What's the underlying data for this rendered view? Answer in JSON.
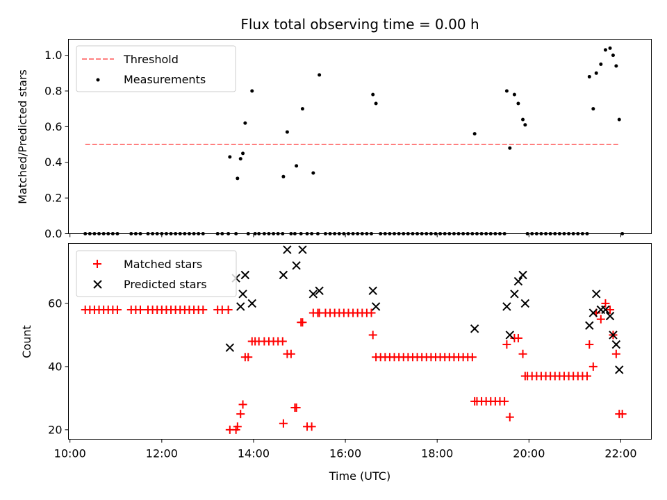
{
  "chart_data": [
    {
      "type": "scatter",
      "title": "Flux total observing time = 0.00 h",
      "xlabel": "",
      "ylabel": "Matched/Predicted stars",
      "xlim": [
        "09:58",
        "22:40"
      ],
      "ylim": [
        0,
        1.09
      ],
      "yticks": [
        "0.0",
        "0.2",
        "0.4",
        "0.6",
        "0.8",
        "1.0"
      ],
      "ytick_values": [
        0,
        0.2,
        0.4,
        0.6,
        0.8,
        1.0
      ],
      "grid": false,
      "legend_position": "upper-left",
      "legend": [
        "Threshold",
        "Measurements"
      ],
      "threshold": {
        "name": "Threshold",
        "x": [
          "10:20",
          "21:58"
        ],
        "y": 0.5,
        "color": "#ff7f7f",
        "style": "dashed"
      },
      "measurements": {
        "name": "Measurements",
        "color": "#000000",
        "x": [
          "10:20",
          "10:26",
          "10:32",
          "10:38",
          "10:44",
          "10:50",
          "10:56",
          "11:02",
          "11:20",
          "11:26",
          "11:32",
          "11:42",
          "11:48",
          "11:54",
          "12:00",
          "12:06",
          "12:12",
          "12:18",
          "12:24",
          "12:30",
          "12:36",
          "12:42",
          "12:48",
          "12:54",
          "13:13",
          "13:19",
          "13:27",
          "13:29",
          "13:37",
          "13:39",
          "13:43",
          "13:46",
          "13:49",
          "13:53",
          "13:58",
          "14:02",
          "14:07",
          "14:14",
          "14:20",
          "14:26",
          "14:32",
          "14:38",
          "14:39",
          "14:44",
          "14:49",
          "14:54",
          "14:56",
          "15:02",
          "15:04",
          "15:10",
          "15:16",
          "15:18",
          "15:24",
          "15:26",
          "15:34",
          "15:40",
          "15:46",
          "15:52",
          "15:58",
          "16:04",
          "16:10",
          "16:16",
          "16:22",
          "16:28",
          "16:34",
          "16:36",
          "16:40",
          "16:46",
          "16:52",
          "16:58",
          "17:04",
          "17:10",
          "17:16",
          "17:22",
          "17:28",
          "17:34",
          "17:40",
          "17:46",
          "17:52",
          "17:58",
          "18:04",
          "18:10",
          "18:16",
          "18:22",
          "18:28",
          "18:34",
          "18:40",
          "18:46",
          "18:49",
          "18:52",
          "18:58",
          "19:04",
          "19:10",
          "19:16",
          "19:22",
          "19:28",
          "19:31",
          "19:35",
          "19:41",
          "19:46",
          "19:52",
          "19:55",
          "19:58",
          "20:04",
          "20:10",
          "20:16",
          "20:22",
          "20:28",
          "20:34",
          "20:40",
          "20:46",
          "20:52",
          "20:58",
          "21:04",
          "21:10",
          "21:16",
          "21:19",
          "21:24",
          "21:28",
          "21:34",
          "21:40",
          "21:46",
          "21:50",
          "21:54",
          "21:58",
          "22:02"
        ],
        "y": [
          0,
          0,
          0,
          0,
          0,
          0,
          0,
          0,
          0,
          0,
          0,
          0,
          0,
          0,
          0,
          0,
          0,
          0,
          0,
          0,
          0,
          0,
          0,
          0,
          0,
          0,
          0,
          0.43,
          0,
          0.31,
          0.42,
          0.45,
          0.62,
          0,
          0.8,
          0,
          0,
          0,
          0,
          0,
          0,
          0,
          0.32,
          0.57,
          0,
          0,
          0.38,
          0,
          0.7,
          0,
          0,
          0.34,
          0,
          0.89,
          0,
          0,
          0,
          0,
          0,
          0,
          0,
          0,
          0,
          0,
          0,
          0.78,
          0.73,
          0,
          0,
          0,
          0,
          0,
          0,
          0,
          0,
          0,
          0,
          0,
          0,
          0,
          0,
          0,
          0,
          0,
          0,
          0,
          0,
          0,
          0.56,
          0,
          0,
          0,
          0,
          0,
          0,
          0,
          0.8,
          0.48,
          0.78,
          0.73,
          0.64,
          0.61,
          0,
          0,
          0,
          0,
          0,
          0,
          0,
          0,
          0,
          0,
          0,
          0,
          0,
          0,
          0.88,
          0.7,
          0.9,
          0.95,
          1.03,
          1.04,
          1.0,
          0.94,
          0.64,
          0
        ]
      }
    },
    {
      "type": "scatter",
      "title": "",
      "xlabel": "Time (UTC)",
      "ylabel": "Count",
      "xlim": [
        "09:58",
        "22:40"
      ],
      "ylim": [
        17,
        79
      ],
      "yticks": [
        "20",
        "40",
        "60"
      ],
      "ytick_values": [
        20,
        40,
        60
      ],
      "xticks": [
        "10:00",
        "12:00",
        "14:00",
        "16:00",
        "18:00",
        "20:00",
        "22:00"
      ],
      "grid": false,
      "legend_position": "upper-left",
      "legend": [
        "Matched stars",
        "Predicted stars"
      ],
      "series": [
        {
          "name": "Matched stars",
          "marker": "plus",
          "color": "#ff0000",
          "x": [
            "10:20",
            "10:26",
            "10:32",
            "10:38",
            "10:44",
            "10:50",
            "10:56",
            "11:02",
            "11:20",
            "11:26",
            "11:32",
            "11:42",
            "11:48",
            "11:54",
            "12:00",
            "12:06",
            "12:12",
            "12:18",
            "12:24",
            "12:30",
            "12:36",
            "12:42",
            "12:48",
            "12:54",
            "13:13",
            "13:19",
            "13:27",
            "13:29",
            "13:37",
            "13:39",
            "13:43",
            "13:46",
            "13:49",
            "13:53",
            "13:58",
            "14:02",
            "14:07",
            "14:14",
            "14:20",
            "14:26",
            "14:32",
            "14:38",
            "14:39",
            "14:44",
            "14:49",
            "14:54",
            "14:56",
            "15:02",
            "15:04",
            "15:10",
            "15:16",
            "15:18",
            "15:24",
            "15:26",
            "15:34",
            "15:40",
            "15:46",
            "15:52",
            "15:58",
            "16:04",
            "16:10",
            "16:16",
            "16:22",
            "16:28",
            "16:34",
            "16:36",
            "16:40",
            "16:46",
            "16:52",
            "16:58",
            "17:04",
            "17:10",
            "17:16",
            "17:22",
            "17:28",
            "17:34",
            "17:40",
            "17:46",
            "17:52",
            "17:58",
            "18:04",
            "18:10",
            "18:16",
            "18:22",
            "18:28",
            "18:34",
            "18:40",
            "18:46",
            "18:49",
            "18:52",
            "18:58",
            "19:04",
            "19:10",
            "19:16",
            "19:22",
            "19:28",
            "19:31",
            "19:35",
            "19:41",
            "19:46",
            "19:52",
            "19:55",
            "19:58",
            "20:04",
            "20:10",
            "20:16",
            "20:22",
            "20:28",
            "20:34",
            "20:40",
            "20:46",
            "20:52",
            "20:58",
            "21:04",
            "21:10",
            "21:16",
            "21:19",
            "21:24",
            "21:28",
            "21:34",
            "21:40",
            "21:46",
            "21:50",
            "21:54",
            "21:58",
            "22:02"
          ],
          "y": [
            58,
            58,
            58,
            58,
            58,
            58,
            58,
            58,
            58,
            58,
            58,
            58,
            58,
            58,
            58,
            58,
            58,
            58,
            58,
            58,
            58,
            58,
            58,
            58,
            58,
            58,
            58,
            20,
            20,
            21,
            25,
            28,
            43,
            43,
            48,
            48,
            48,
            48,
            48,
            48,
            48,
            48,
            22,
            44,
            44,
            27,
            27,
            54,
            54,
            21,
            21,
            57,
            57,
            57,
            57,
            57,
            57,
            57,
            57,
            57,
            57,
            57,
            57,
            57,
            57,
            50,
            43,
            43,
            43,
            43,
            43,
            43,
            43,
            43,
            43,
            43,
            43,
            43,
            43,
            43,
            43,
            43,
            43,
            43,
            43,
            43,
            43,
            43,
            29,
            29,
            29,
            29,
            29,
            29,
            29,
            29,
            47,
            24,
            49,
            49,
            44,
            37,
            37,
            37,
            37,
            37,
            37,
            37,
            37,
            37,
            37,
            37,
            37,
            37,
            37,
            37,
            47,
            40,
            57,
            55,
            60,
            58,
            50,
            44,
            25,
            25
          ]
        },
        {
          "name": "Predicted stars",
          "marker": "x",
          "color": "#000000",
          "x": [
            "13:29",
            "13:37",
            "13:43",
            "13:46",
            "13:49",
            "13:58",
            "14:39",
            "14:44",
            "14:56",
            "15:04",
            "15:18",
            "15:26",
            "16:36",
            "16:40",
            "18:49",
            "19:31",
            "19:35",
            "19:41",
            "19:46",
            "19:52",
            "19:55",
            "21:19",
            "21:24",
            "21:28",
            "21:34",
            "21:40",
            "21:46",
            "21:50",
            "21:54",
            "21:58"
          ],
          "y": [
            46,
            68,
            59,
            63,
            69,
            60,
            69,
            77,
            72,
            77,
            63,
            64,
            64,
            59,
            52,
            59,
            50,
            63,
            67,
            69,
            60,
            53,
            57,
            63,
            58,
            58,
            56,
            50,
            47,
            39
          ]
        }
      ]
    }
  ]
}
